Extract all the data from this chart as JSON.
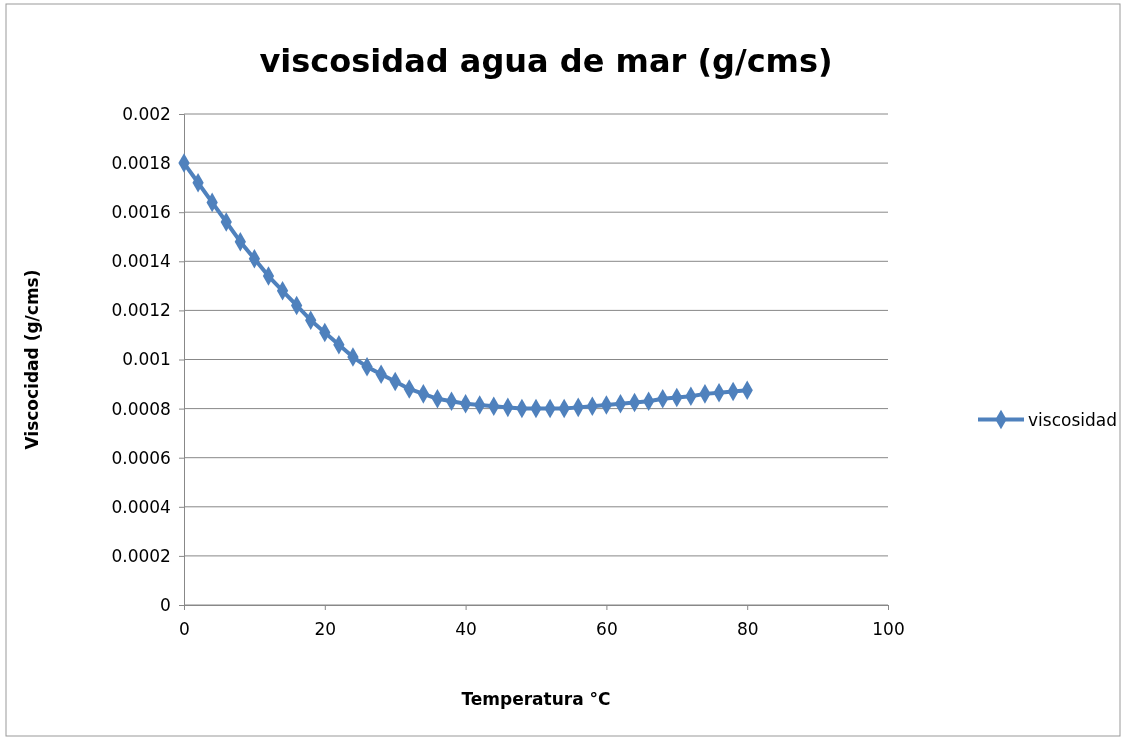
{
  "chart_data": {
    "type": "line",
    "title": "viscosidad agua de mar (g/cms)",
    "xlabel": "Temperatura °C",
    "ylabel": "Viscocidad (g/cms)",
    "x": [
      0,
      2,
      4,
      6,
      8,
      10,
      12,
      14,
      16,
      18,
      20,
      22,
      24,
      26,
      28,
      30,
      32,
      34,
      36,
      38,
      40,
      42,
      44,
      46,
      48,
      50,
      52,
      54,
      56,
      58,
      60,
      62,
      64,
      66,
      68,
      70,
      72,
      74,
      76,
      78,
      80
    ],
    "series": [
      {
        "name": "viscosidad",
        "color": "#4f81bd",
        "values": [
          0.0018,
          0.00172,
          0.00164,
          0.00156,
          0.00148,
          0.00141,
          0.00134,
          0.00128,
          0.00122,
          0.00116,
          0.00111,
          0.00106,
          0.00101,
          0.00097,
          0.00094,
          0.00091,
          0.00088,
          0.00086,
          0.00084,
          0.00083,
          0.00082,
          0.000815,
          0.00081,
          0.000805,
          0.0008,
          0.0008,
          0.0008,
          0.0008,
          0.000805,
          0.00081,
          0.000815,
          0.00082,
          0.000825,
          0.00083,
          0.00084,
          0.000845,
          0.00085,
          0.00086,
          0.000865,
          0.00087,
          0.000875
        ]
      }
    ],
    "xlim": [
      0,
      100
    ],
    "xticks": [
      0,
      20,
      40,
      60,
      80,
      100
    ],
    "ylim": [
      0,
      0.002
    ],
    "yticks": [
      0,
      0.0002,
      0.0004,
      0.0006,
      0.0008,
      0.001,
      0.0012,
      0.0014,
      0.0016,
      0.0018,
      0.002
    ],
    "grid": "y",
    "legend": "right",
    "marker": "diamond",
    "line_style": "solid"
  }
}
